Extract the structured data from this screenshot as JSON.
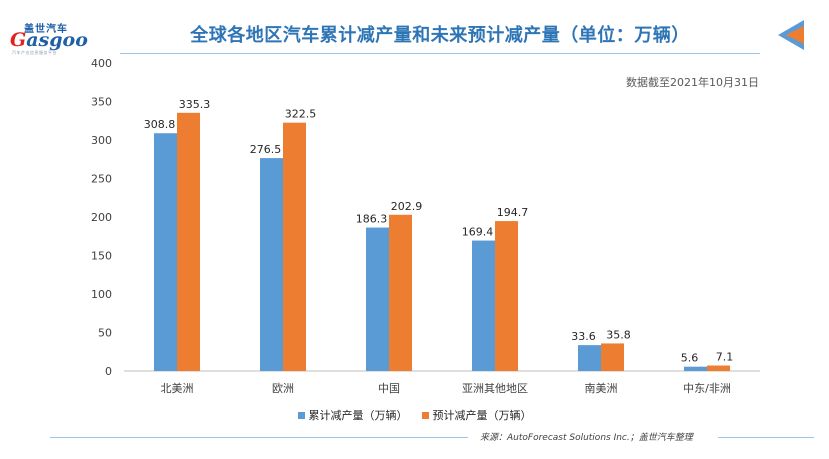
{
  "header": {
    "logo_top": "盖世汽车",
    "logo_main_g": "G",
    "logo_main_rest": "asgoo",
    "logo_sub": "汽车产业信息服务平台",
    "title": "全球各地区汽车累计减产量和未来预计减产量（单位：万辆）"
  },
  "note": "数据截至2021年10月31日",
  "legend": {
    "series_1": "累计减产量（万辆）",
    "series_2": "预计减产量（万辆）"
  },
  "source": "来源：AutoForecast Solutions Inc.；盖世汽车整理",
  "colors": {
    "series_1": "#5b9bd5",
    "series_2": "#ed7d31",
    "title": "#2e75b6"
  },
  "chart_data": {
    "type": "bar",
    "categories": [
      "北美洲",
      "欧洲",
      "中国",
      "亚洲其他地区",
      "南美洲",
      "中东/非洲"
    ],
    "series": [
      {
        "name": "累计减产量（万辆）",
        "values": [
          308.8,
          276.5,
          186.3,
          169.4,
          33.6,
          5.6
        ]
      },
      {
        "name": "预计减产量（万辆）",
        "values": [
          335.3,
          322.5,
          202.9,
          194.7,
          35.8,
          7.1
        ]
      }
    ],
    "ylim": [
      0,
      400
    ],
    "yticks": [
      0,
      50,
      100,
      150,
      200,
      250,
      300,
      350,
      400
    ],
    "grid": false,
    "legend_position": "bottom"
  }
}
